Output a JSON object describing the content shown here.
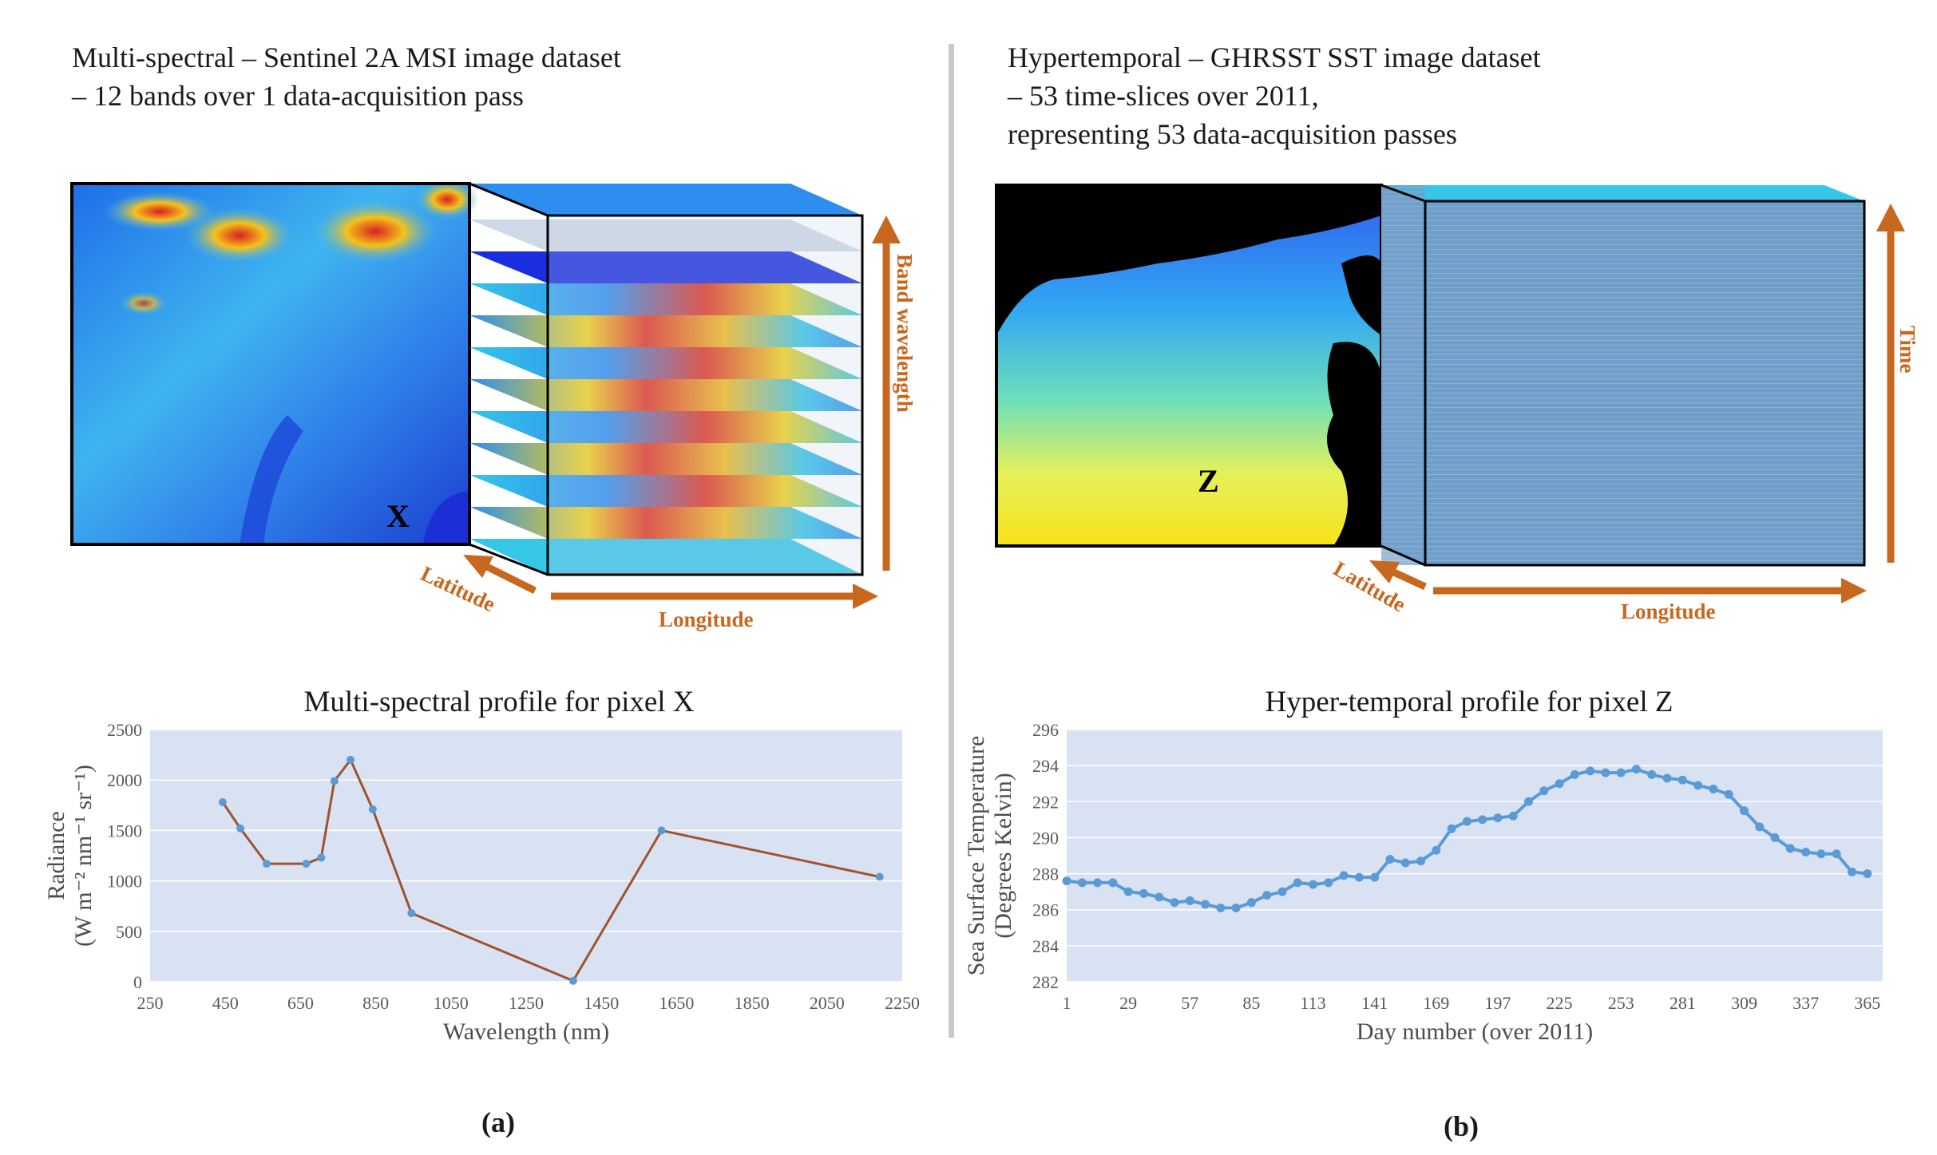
{
  "left": {
    "heading": [
      "Multi-spectral – Sentinel 2A MSI image dataset",
      "– 12 bands over 1 data-acquisition pass"
    ],
    "pixel_label": "X",
    "axis_labels": {
      "vertical": "Band wavelength",
      "latitude": "Latitude",
      "longitude": "Longitude"
    },
    "panel_label": "(a)"
  },
  "right": {
    "heading": [
      "Hypertemporal – GHRSST SST image dataset",
      "– 53 time-slices over 2011,",
      "representing 53 data-acquisition passes"
    ],
    "pixel_label": "Z",
    "axis_labels": {
      "vertical": "Time",
      "latitude": "Latitude",
      "longitude": "Longitude"
    },
    "panel_label": "(b)"
  },
  "colors": {
    "accent": "#c8671e",
    "plot_bg": "#d9e2f2",
    "series_line_a": "#a0522d",
    "series_line_b": "#5b9bd5",
    "marker": "#5b9bd5"
  },
  "chart_data": [
    {
      "type": "line",
      "title": "Multi-spectral profile for pixel X",
      "xlabel": "Wavelength (nm)",
      "ylabel": [
        "Radiance",
        "(W m⁻² nm⁻¹ sr⁻¹)"
      ],
      "xlim": [
        250,
        2250
      ],
      "ylim": [
        0,
        2500
      ],
      "xticks": [
        250,
        450,
        650,
        850,
        1050,
        1250,
        1450,
        1650,
        1850,
        2050,
        2250
      ],
      "yticks": [
        0,
        500,
        1000,
        1500,
        2000,
        2500
      ],
      "x": [
        443,
        490,
        560,
        665,
        705,
        740,
        783,
        842,
        945,
        1375,
        1610,
        2190
      ],
      "y": [
        1780,
        1520,
        1170,
        1170,
        1230,
        1990,
        2200,
        1710,
        680,
        10,
        1500,
        1040
      ]
    },
    {
      "type": "line",
      "title": "Hyper-temporal profile for pixel Z",
      "xlabel": "Day number (over 2011)",
      "ylabel": [
        "Sea Surface Temperature",
        "(Degrees Kelvin)"
      ],
      "xlim": [
        1,
        372
      ],
      "ylim": [
        282,
        296
      ],
      "xticks": [
        1,
        29,
        57,
        85,
        113,
        141,
        169,
        197,
        225,
        253,
        281,
        309,
        337,
        365
      ],
      "yticks": [
        282,
        284,
        286,
        288,
        290,
        292,
        294,
        296
      ],
      "x": [
        1,
        8,
        15,
        22,
        29,
        36,
        43,
        50,
        57,
        64,
        71,
        78,
        85,
        92,
        99,
        106,
        113,
        120,
        127,
        134,
        141,
        148,
        155,
        162,
        169,
        176,
        183,
        190,
        197,
        204,
        211,
        218,
        225,
        232,
        239,
        246,
        253,
        260,
        267,
        274,
        281,
        288,
        295,
        302,
        309,
        316,
        323,
        330,
        337,
        344,
        351,
        358,
        365
      ],
      "y": [
        287.6,
        287.5,
        287.5,
        287.5,
        287.0,
        286.9,
        286.7,
        286.4,
        286.5,
        286.3,
        286.1,
        286.1,
        286.4,
        286.8,
        287.0,
        287.5,
        287.4,
        287.5,
        287.9,
        287.8,
        287.8,
        288.8,
        288.6,
        288.7,
        289.3,
        290.5,
        290.9,
        291.0,
        291.1,
        291.2,
        292.0,
        292.6,
        293.0,
        293.5,
        293.7,
        293.6,
        293.6,
        293.8,
        293.5,
        293.3,
        293.2,
        292.9,
        292.7,
        292.4,
        291.5,
        290.6,
        290.0,
        289.4,
        289.2,
        289.1,
        289.1,
        288.1,
        288.0
      ]
    }
  ]
}
